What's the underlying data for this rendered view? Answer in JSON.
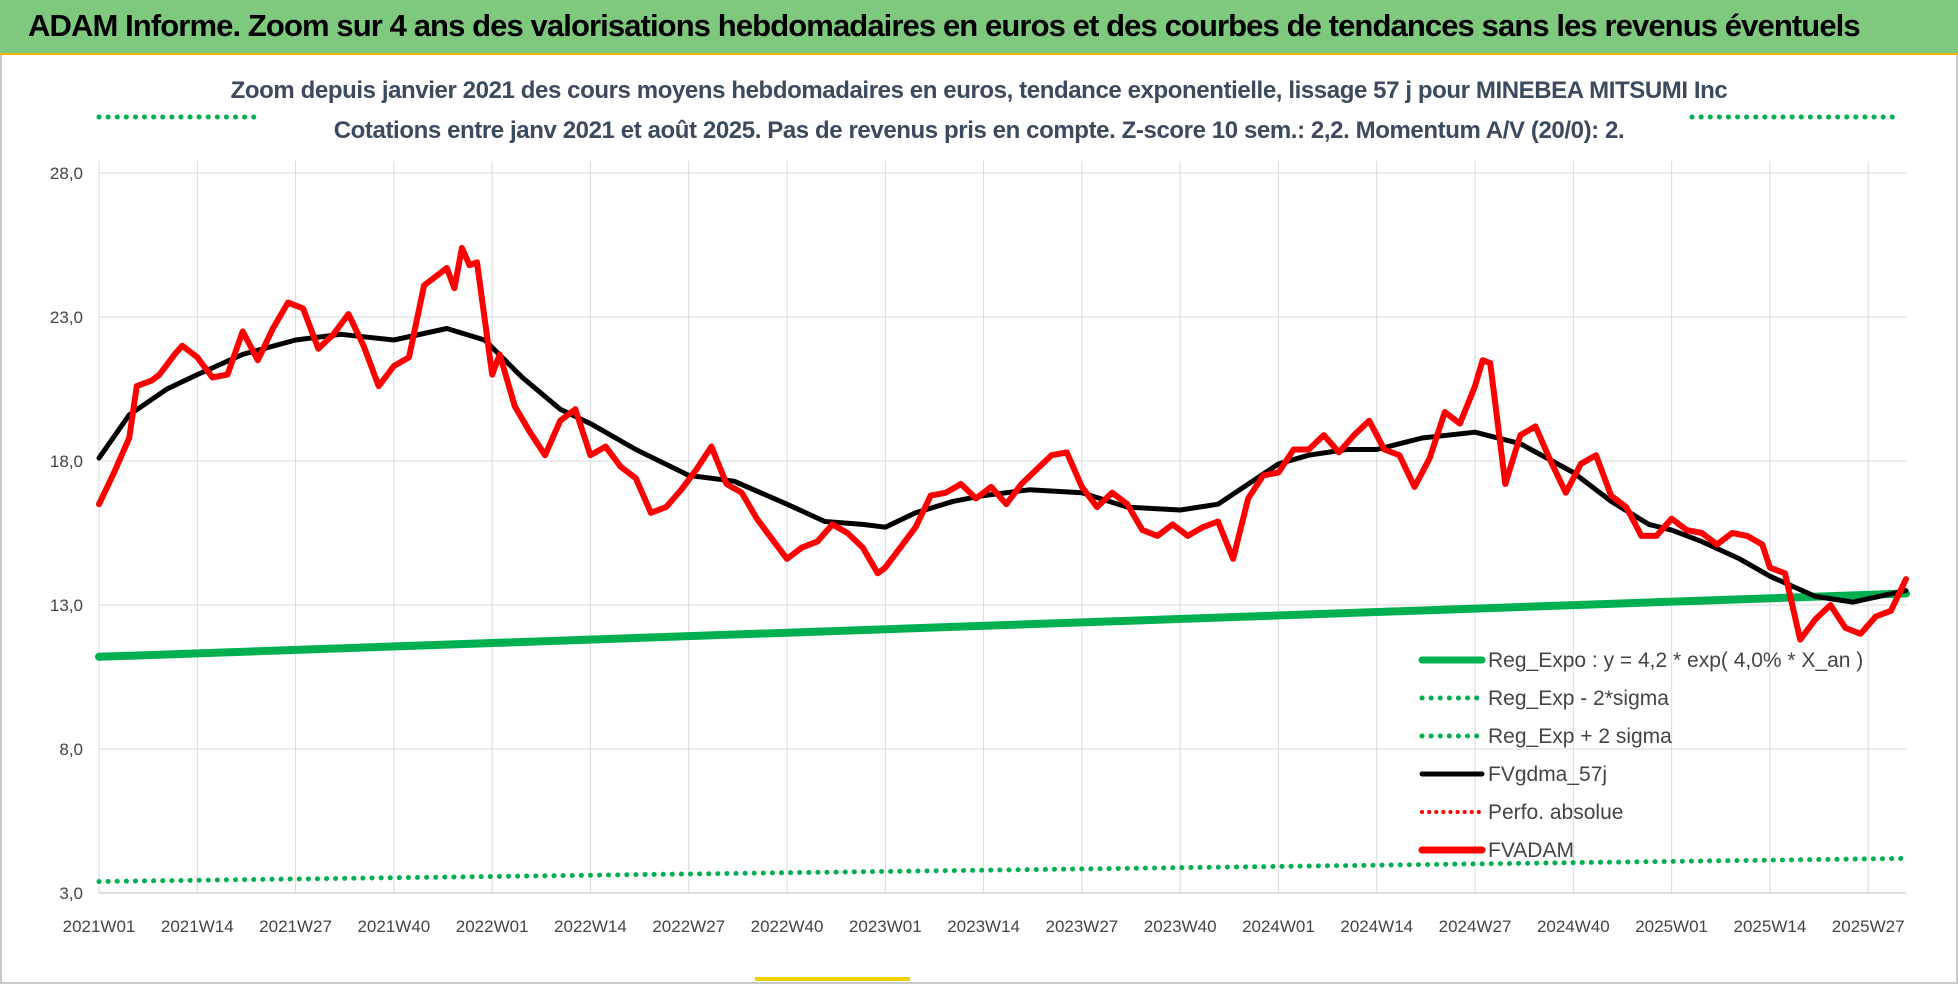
{
  "header": {
    "title": "ADAM Informe. Zoom sur 4 ans des valorisations hebdomadaires en euros et des courbes de tendances sans les revenus éventuels"
  },
  "subtitles": [
    "Zoom depuis janvier 2021 des cours moyens hebdomadaires en euros, tendance exponentielle, lissage 57 j pour MINEBEA MITSUMI  Inc",
    "Cotations entre janv 2021 et août 2025.  Pas de revenus pris en compte. Z-score 10 sem.: 2,2. Momentum A/V (20/0): 2."
  ],
  "colors": {
    "header_bg": "#7ec97e",
    "accent": "#f3b400",
    "reg_expo": "#00b050",
    "price": "#ff0000",
    "smooth": "#000000",
    "grid": "#d9d9d9"
  },
  "chart_data": {
    "type": "line",
    "ylim": [
      3,
      28
    ],
    "y_ticks": [
      "3,0",
      "8,0",
      "13,0",
      "18,0",
      "23,0",
      "28,0"
    ],
    "y_tick_values": [
      3,
      8,
      13,
      18,
      23,
      28
    ],
    "x_ticks": [
      "2021W01",
      "2021W14",
      "2021W27",
      "2021W40",
      "2022W01",
      "2022W14",
      "2022W27",
      "2022W40",
      "2023W01",
      "2023W14",
      "2023W27",
      "2023W40",
      "2024W01",
      "2024W14",
      "2024W27",
      "2024W40",
      "2025W01",
      "2025W14",
      "2025W27"
    ],
    "x_range": [
      "2021W01",
      "2025W32"
    ],
    "grid": "vertical and horizontal",
    "legend_position": "bottom-right",
    "series": [
      {
        "name": "Reg_Expo : y = 4,2 * exp( 4,0% *  X_an )",
        "style": "solid",
        "color": "#00b050",
        "x": [
          "2021W01",
          "2025W32"
        ],
        "values": [
          11.2,
          13.4
        ]
      },
      {
        "name": "Reg_Exp - 2*sigma",
        "style": "dotted",
        "color": "#00b050",
        "x": [
          "2021W01",
          "2025W32"
        ],
        "values": [
          3.4,
          4.2
        ]
      },
      {
        "name": "Reg_Exp + 2 sigma",
        "style": "dotted",
        "color": "#00b050",
        "x": [
          "2021W01",
          "2025W32"
        ],
        "values": [
          30.0,
          30.0
        ]
      },
      {
        "name": "FVgdma_57j",
        "style": "solid",
        "color": "#000000",
        "x": [
          "2021W01",
          "2021W05",
          "2021W10",
          "2021W14",
          "2021W20",
          "2021W27",
          "2021W33",
          "2021W40",
          "2021W47",
          "2021W52",
          "2022W05",
          "2022W10",
          "2022W14",
          "2022W20",
          "2022W27",
          "2022W33",
          "2022W40",
          "2022W45",
          "2022W50",
          "2023W01",
          "2023W05",
          "2023W10",
          "2023W14",
          "2023W20",
          "2023W27",
          "2023W33",
          "2023W40",
          "2023W45",
          "2024W01",
          "2024W05",
          "2024W10",
          "2024W14",
          "2024W20",
          "2024W27",
          "2024W33",
          "2024W40",
          "2024W45",
          "2024W50",
          "2025W01",
          "2025W05",
          "2025W10",
          "2025W14",
          "2025W20",
          "2025W25",
          "2025W32"
        ],
        "values": [
          18.1,
          19.6,
          20.5,
          21.0,
          21.7,
          22.2,
          22.4,
          22.2,
          22.6,
          22.2,
          20.9,
          19.8,
          19.3,
          18.4,
          17.5,
          17.3,
          16.5,
          15.9,
          15.8,
          15.7,
          16.2,
          16.6,
          16.8,
          17.0,
          16.9,
          16.4,
          16.3,
          16.5,
          17.9,
          18.2,
          18.4,
          18.4,
          18.8,
          19.0,
          18.6,
          17.6,
          16.6,
          15.8,
          15.6,
          15.2,
          14.6,
          14.0,
          13.3,
          13.1,
          13.5
        ]
      },
      {
        "name": "Perfo. absolue",
        "style": "dotted",
        "color": "#ff0000",
        "x": [],
        "values": []
      },
      {
        "name": "FVADAM",
        "style": "solid",
        "color": "#ff0000",
        "x": [
          "2021W01",
          "2021W03",
          "2021W05",
          "2021W06",
          "2021W08",
          "2021W09",
          "2021W11",
          "2021W12",
          "2021W14",
          "2021W16",
          "2021W18",
          "2021W20",
          "2021W22",
          "2021W24",
          "2021W26",
          "2021W28",
          "2021W30",
          "2021W32",
          "2021W34",
          "2021W36",
          "2021W38",
          "2021W40",
          "2021W42",
          "2021W44",
          "2021W45",
          "2021W47",
          "2021W48",
          "2021W49",
          "2021W50",
          "2021W51",
          "2022W01",
          "2022W02",
          "2022W04",
          "2022W06",
          "2022W08",
          "2022W10",
          "2022W12",
          "2022W14",
          "2022W16",
          "2022W18",
          "2022W20",
          "2022W22",
          "2022W24",
          "2022W26",
          "2022W28",
          "2022W30",
          "2022W32",
          "2022W34",
          "2022W36",
          "2022W38",
          "2022W40",
          "2022W42",
          "2022W44",
          "2022W46",
          "2022W48",
          "2022W50",
          "2022W52",
          "2023W01",
          "2023W03",
          "2023W05",
          "2023W07",
          "2023W09",
          "2023W11",
          "2023W13",
          "2023W15",
          "2023W17",
          "2023W19",
          "2023W21",
          "2023W23",
          "2023W25",
          "2023W27",
          "2023W29",
          "2023W31",
          "2023W33",
          "2023W35",
          "2023W37",
          "2023W39",
          "2023W41",
          "2023W43",
          "2023W45",
          "2023W47",
          "2023W49",
          "2023W51",
          "2024W01",
          "2024W03",
          "2024W05",
          "2024W07",
          "2024W09",
          "2024W11",
          "2024W13",
          "2024W15",
          "2024W17",
          "2024W19",
          "2024W21",
          "2024W23",
          "2024W25",
          "2024W27",
          "2024W28",
          "2024W29",
          "2024W31",
          "2024W33",
          "2024W35",
          "2024W37",
          "2024W39",
          "2024W41",
          "2024W43",
          "2024W45",
          "2024W47",
          "2024W49",
          "2024W51",
          "2025W01",
          "2025W03",
          "2025W05",
          "2025W07",
          "2025W09",
          "2025W11",
          "2025W13",
          "2025W14",
          "2025W16",
          "2025W18",
          "2025W20",
          "2025W22",
          "2025W24",
          "2025W26",
          "2025W28",
          "2025W30",
          "2025W32"
        ],
        "values": [
          16.5,
          17.6,
          18.8,
          20.6,
          20.8,
          21.0,
          21.7,
          22.0,
          21.6,
          20.9,
          21.0,
          22.5,
          21.5,
          22.6,
          23.5,
          23.3,
          21.9,
          22.4,
          23.1,
          22.0,
          20.6,
          21.3,
          21.6,
          24.1,
          24.3,
          24.7,
          24.0,
          25.4,
          24.8,
          24.9,
          21.0,
          21.7,
          19.9,
          19.0,
          18.2,
          19.4,
          19.8,
          18.2,
          18.5,
          17.8,
          17.4,
          16.2,
          16.4,
          17.0,
          17.7,
          18.5,
          17.2,
          16.9,
          16.0,
          15.3,
          14.6,
          15.0,
          15.2,
          15.8,
          15.5,
          15.0,
          14.1,
          14.3,
          15.0,
          15.7,
          16.8,
          16.9,
          17.2,
          16.7,
          17.1,
          16.5,
          17.2,
          17.7,
          18.2,
          18.3,
          17.1,
          16.4,
          16.9,
          16.5,
          15.6,
          15.4,
          15.8,
          15.4,
          15.7,
          15.9,
          14.6,
          16.7,
          17.5,
          17.6,
          18.4,
          18.4,
          18.9,
          18.3,
          18.9,
          19.4,
          18.4,
          18.2,
          17.1,
          18.1,
          19.7,
          19.3,
          20.6,
          21.5,
          21.4,
          17.2,
          18.9,
          19.2,
          18.0,
          16.9,
          17.9,
          18.2,
          16.8,
          16.4,
          15.4,
          15.4,
          16.0,
          15.6,
          15.5,
          15.1,
          15.5,
          15.4,
          15.1,
          14.3,
          14.1,
          11.8,
          12.5,
          13.0,
          12.2,
          12.0,
          12.6,
          12.8,
          13.9
        ]
      }
    ]
  }
}
